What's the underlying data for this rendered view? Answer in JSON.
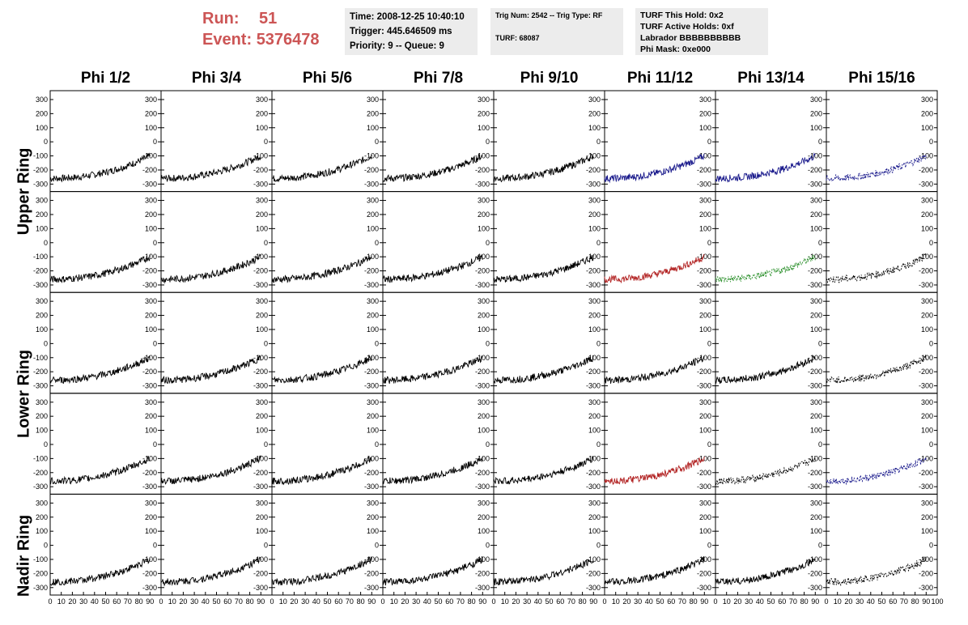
{
  "header": {
    "run_label": "Run:",
    "run_value": "51",
    "event_label": "Event:",
    "event_value": "5376478"
  },
  "info_panels": {
    "time": "Time: 2008-12-25 10:40:10",
    "trigger": "Trigger: 445.646509 ms",
    "priority": "Priority: 9 -- Queue: 9",
    "trig_num": "Trig Num: 2542 -- Trig Type: RF",
    "turf": "TURF: 68087",
    "turf_this_hold": "TURF This Hold: 0x2",
    "turf_active_holds": "TURF Active Holds: 0xf",
    "labrador": "Labrador BBBBBBBBBB",
    "phi_mask": "Phi Mask: 0xe000"
  },
  "columns": [
    "Phi 1/2",
    "Phi 3/4",
    "Phi 5/6",
    "Phi 7/8",
    "Phi 9/10",
    "Phi 11/12",
    "Phi 13/14",
    "Phi 15/16"
  ],
  "rings": [
    "Upper Ring",
    "Lower Ring",
    "Nadir Ring"
  ],
  "colors": {
    "black": "#000000",
    "blue": "#1a1a8c",
    "red": "#b22222",
    "green": "#228b22",
    "text_red": "#cc5555",
    "panel_bg": "#ececec"
  },
  "chart_data": {
    "type": "line",
    "title": "",
    "xlabel": "",
    "ylabel": "",
    "xlim": [
      0,
      100
    ],
    "ylim": [
      -330,
      340
    ],
    "y_ticks": [
      -300,
      -200,
      -100,
      0,
      100,
      200,
      300
    ],
    "y_tick_labels": [
      "-300",
      "-200",
      "-100",
      "0",
      "100",
      "200",
      "300"
    ],
    "x_ticks": [
      0,
      10,
      20,
      30,
      40,
      50,
      60,
      70,
      80,
      90,
      100
    ],
    "x_tick_labels": [
      "0",
      "10",
      "20",
      "30",
      "40",
      "50",
      "60",
      "70",
      "80",
      "90",
      "100"
    ],
    "rows": 5,
    "cols": 8,
    "trace_colors": [
      [
        "black",
        "black",
        "black",
        "black",
        "black",
        "blue",
        "blue",
        "blue"
      ],
      [
        "black",
        "black",
        "black",
        "black",
        "black",
        "red",
        "green",
        "black"
      ],
      [
        "black",
        "black",
        "black",
        "black",
        "black",
        "black",
        "black",
        "black"
      ],
      [
        "black",
        "black",
        "black",
        "black",
        "black",
        "red",
        "black",
        "blue"
      ],
      [
        "black",
        "black",
        "black",
        "black",
        "black",
        "black",
        "black",
        "black"
      ]
    ],
    "trace_styles": [
      [
        "solid",
        "solid",
        "solid",
        "solid",
        "solid",
        "solid",
        "solid",
        "dashed"
      ],
      [
        "solid",
        "solid",
        "solid",
        "solid",
        "solid",
        "solid",
        "dashed",
        "dashed"
      ],
      [
        "solid",
        "solid",
        "solid",
        "solid",
        "solid",
        "solid",
        "solid",
        "dashed"
      ],
      [
        "solid",
        "solid",
        "solid",
        "solid",
        "solid",
        "solid",
        "dashed",
        "dashed"
      ],
      [
        "solid",
        "solid",
        "solid",
        "solid",
        "solid",
        "solid",
        "solid",
        "dashed"
      ]
    ],
    "trace_shape": {
      "baseline_start": -260,
      "baseline_end": -100,
      "noise_amplitude": 25,
      "start_x": 0,
      "end_x": 90
    }
  }
}
